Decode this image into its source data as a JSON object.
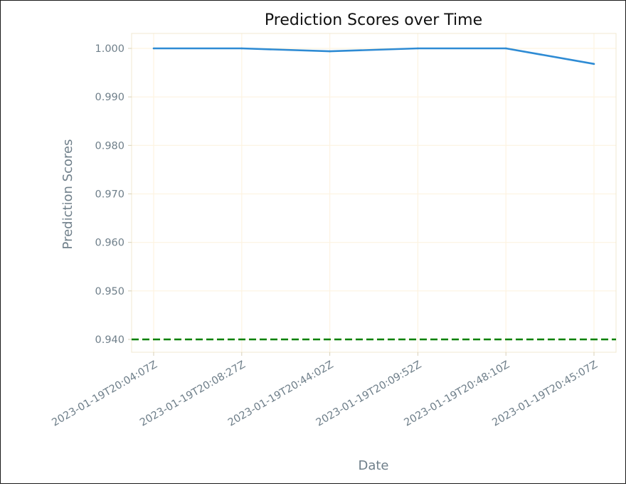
{
  "chart_data": {
    "type": "line",
    "title": "Prediction Scores over Time",
    "xlabel": "Date",
    "ylabel": "Prediction Scores",
    "categories": [
      "2023-01-19T20:04:07Z",
      "2023-01-19T20:08:27Z",
      "2023-01-19T20:44:02Z",
      "2023-01-19T20:09:52Z",
      "2023-01-19T20:48:10Z",
      "2023-01-19T20:45:07Z"
    ],
    "series": [
      {
        "values": [
          1.0,
          1.0,
          0.9994,
          1.0,
          1.0,
          0.9968
        ]
      }
    ],
    "threshold": 0.94,
    "yticks": [
      "0.940",
      "0.950",
      "0.960",
      "0.970",
      "0.980",
      "0.990",
      "1.000"
    ],
    "ylim": [
      0.9364,
      1.0032
    ],
    "grid": true,
    "colors": {
      "line": "#2e8bd4",
      "threshold": "#008000",
      "grid": "#fdf3e1",
      "axis_spine": "#f0e8d0",
      "text": "#6f7f8a",
      "title": "#111111"
    }
  }
}
